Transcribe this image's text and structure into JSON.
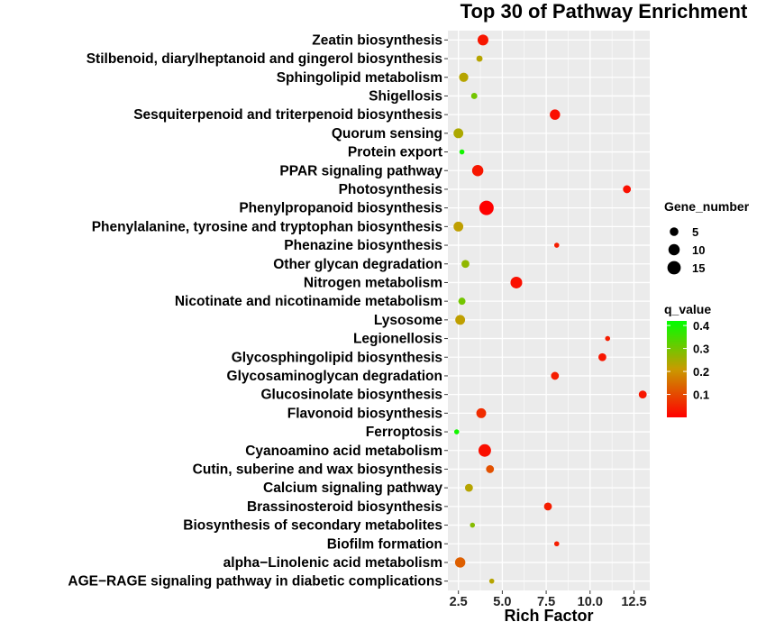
{
  "chart_data": {
    "type": "scatter",
    "title": "Top 30 of Pathway Enrichment",
    "xlabel": "Rich Factor",
    "ylabel": "",
    "xlim": [
      1.9,
      13.4
    ],
    "xticks": [
      "2.5",
      "5.0",
      "7.5",
      "10.0",
      "12.5"
    ],
    "xtick_values": [
      2.5,
      5.0,
      7.5,
      10.0,
      12.5
    ],
    "grid": true,
    "panel_background": "#ebebeb",
    "legend_placement": "right",
    "size_legend": {
      "title": "Gene_number",
      "entries": [
        5,
        10,
        15
      ]
    },
    "color_legend": {
      "title": "q_value",
      "ticks": [
        "0.4",
        "0.3",
        "0.2",
        "0.1"
      ],
      "tick_values": [
        0.4,
        0.3,
        0.2,
        0.1
      ],
      "range": [
        0.0,
        0.42
      ],
      "colors": [
        "#ff0000",
        "#c99a00",
        "#00ff00"
      ]
    },
    "points": [
      {
        "pathway": "Zeatin biosynthesis",
        "rich_factor": 3.9,
        "gene_number": 9,
        "q_value": 0.03
      },
      {
        "pathway": "Stilbenoid, diarylheptanoid and gingerol biosynthesis",
        "rich_factor": 3.7,
        "gene_number": 2,
        "q_value": 0.23
      },
      {
        "pathway": "Sphingolipid metabolism",
        "rich_factor": 2.8,
        "gene_number": 6,
        "q_value": 0.23
      },
      {
        "pathway": "Shigellosis",
        "rich_factor": 3.4,
        "gene_number": 2,
        "q_value": 0.3
      },
      {
        "pathway": "Sesquiterpenoid and triterpenoid biosynthesis",
        "rich_factor": 8.0,
        "gene_number": 8,
        "q_value": 0.02
      },
      {
        "pathway": "Quorum sensing",
        "rich_factor": 2.5,
        "gene_number": 7,
        "q_value": 0.24
      },
      {
        "pathway": "Protein export",
        "rich_factor": 2.7,
        "gene_number": 1,
        "q_value": 0.4
      },
      {
        "pathway": "PPAR signaling pathway",
        "rich_factor": 3.6,
        "gene_number": 10,
        "q_value": 0.03
      },
      {
        "pathway": "Photosynthesis",
        "rich_factor": 12.1,
        "gene_number": 4,
        "q_value": 0.02
      },
      {
        "pathway": "Phenylpropanoid biosynthesis",
        "rich_factor": 4.1,
        "gene_number": 18,
        "q_value": 0.0
      },
      {
        "pathway": "Phenylalanine, tyrosine and tryptophan biosynthesis",
        "rich_factor": 2.5,
        "gene_number": 7,
        "q_value": 0.22
      },
      {
        "pathway": "Phenazine biosynthesis",
        "rich_factor": 8.1,
        "gene_number": 1,
        "q_value": 0.04
      },
      {
        "pathway": "Other glycan degradation",
        "rich_factor": 2.9,
        "gene_number": 4,
        "q_value": 0.27
      },
      {
        "pathway": "Nitrogen metabolism",
        "rich_factor": 5.8,
        "gene_number": 11,
        "q_value": 0.02
      },
      {
        "pathway": "Nicotinate and nicotinamide metabolism",
        "rich_factor": 2.7,
        "gene_number": 3,
        "q_value": 0.3
      },
      {
        "pathway": "Lysosome",
        "rich_factor": 2.6,
        "gene_number": 7,
        "q_value": 0.22
      },
      {
        "pathway": "Legionellosis",
        "rich_factor": 11.0,
        "gene_number": 1,
        "q_value": 0.04
      },
      {
        "pathway": "Glycosphingolipid biosynthesis",
        "rich_factor": 10.7,
        "gene_number": 4,
        "q_value": 0.03
      },
      {
        "pathway": "Glycosaminoglycan degradation",
        "rich_factor": 8.0,
        "gene_number": 4,
        "q_value": 0.04
      },
      {
        "pathway": "Glucosinolate biosynthesis",
        "rich_factor": 13.0,
        "gene_number": 4,
        "q_value": 0.03
      },
      {
        "pathway": "Flavonoid biosynthesis",
        "rich_factor": 3.8,
        "gene_number": 7,
        "q_value": 0.06
      },
      {
        "pathway": "Ferroptosis",
        "rich_factor": 2.4,
        "gene_number": 1,
        "q_value": 0.4
      },
      {
        "pathway": "Cyanoamino acid metabolism",
        "rich_factor": 4.0,
        "gene_number": 13,
        "q_value": 0.02
      },
      {
        "pathway": "Cutin, suberine and wax biosynthesis",
        "rich_factor": 4.3,
        "gene_number": 4,
        "q_value": 0.11
      },
      {
        "pathway": "Calcium signaling pathway",
        "rich_factor": 3.1,
        "gene_number": 4,
        "q_value": 0.23
      },
      {
        "pathway": "Brassinosteroid biosynthesis",
        "rich_factor": 7.6,
        "gene_number": 4,
        "q_value": 0.04
      },
      {
        "pathway": "Biosynthesis of secondary metabolites",
        "rich_factor": 3.3,
        "gene_number": 1,
        "q_value": 0.28
      },
      {
        "pathway": "Biofilm formation",
        "rich_factor": 8.1,
        "gene_number": 1,
        "q_value": 0.04
      },
      {
        "pathway": "alpha−Linolenic acid metabolism",
        "rich_factor": 2.6,
        "gene_number": 8,
        "q_value": 0.13
      },
      {
        "pathway": "AGE−RAGE signaling pathway in diabetic complications",
        "rich_factor": 4.4,
        "gene_number": 1,
        "q_value": 0.23
      }
    ]
  }
}
